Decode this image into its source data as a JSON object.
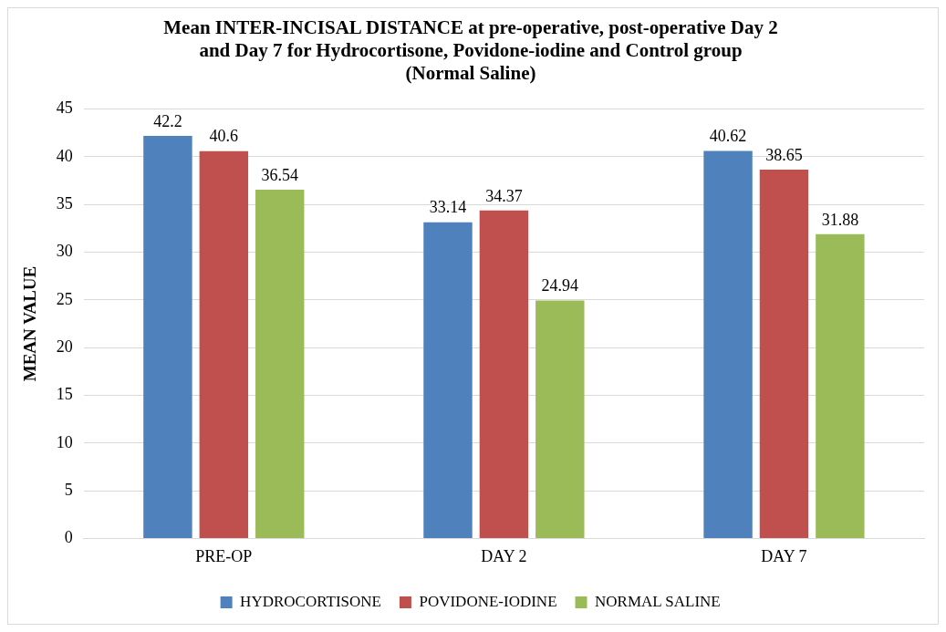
{
  "chart_data": {
    "type": "bar",
    "title": "Mean INTER-INCISAL DISTANCE at pre-operative, post-operative Day 2 and Day 7 for Hydrocortisone, Povidone-iodine and Control group (Normal Saline)",
    "ylabel": "MEAN VALUE",
    "categories": [
      "PRE-OP",
      "DAY 2",
      "DAY 7"
    ],
    "series": [
      {
        "name": "HYDROCORTISONE",
        "color": "#4f81bd",
        "values": [
          42.2,
          33.14,
          40.62
        ]
      },
      {
        "name": "POVIDONE-IODINE",
        "color": "#c0504d",
        "values": [
          40.6,
          34.37,
          38.65
        ]
      },
      {
        "name": "NORMAL SALINE",
        "color": "#9bbb59",
        "values": [
          36.54,
          24.94,
          31.88
        ]
      }
    ],
    "ylim": [
      0,
      45
    ],
    "yticks": [
      0,
      5,
      10,
      15,
      20,
      25,
      30,
      35,
      40,
      45
    ],
    "grid": "y",
    "legend": "bottom",
    "data_labels": true
  }
}
